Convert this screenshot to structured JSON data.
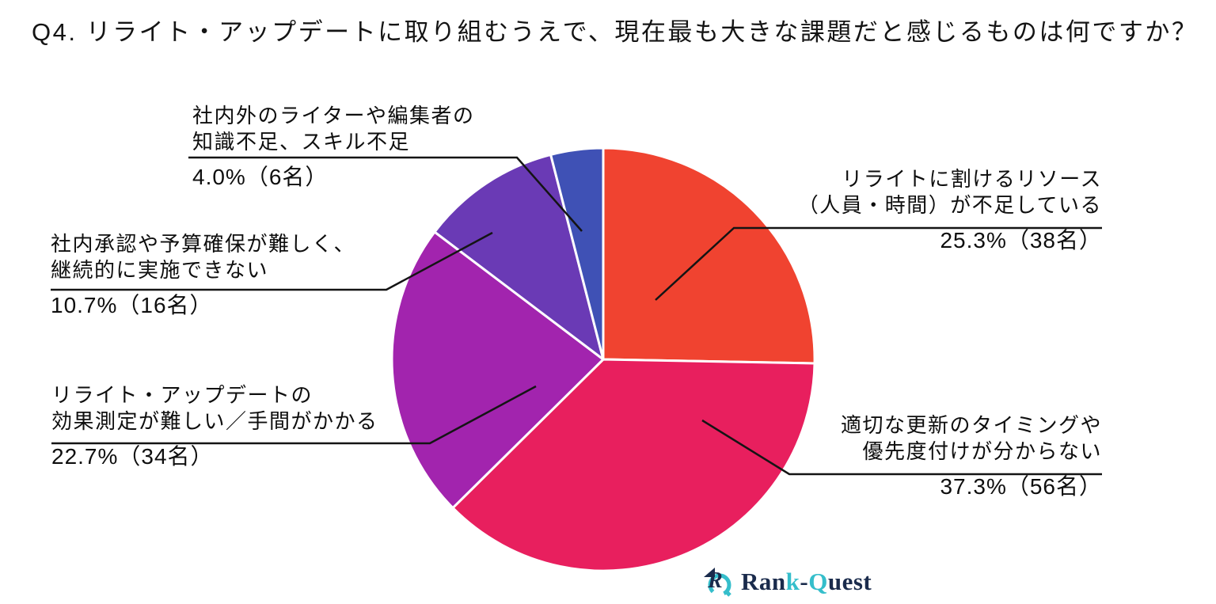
{
  "chart_data": {
    "type": "pie",
    "title": "Q4. リライト・アップデートに取り組むうえで、現在最も大きな課題だと感じるものは何ですか？",
    "direction": "clockwise",
    "start_angle": "12-oclock",
    "legend_position": "callout-labels",
    "count_unit": "名",
    "slices": [
      {
        "label_line1": "リライトに割けるリソース",
        "label_line2": "（人員・時間）が不足している",
        "percent": 25.3,
        "count": 38,
        "value_label": "25.3%（38名）",
        "color": "#F04330"
      },
      {
        "label_line1": "適切な更新のタイミングや",
        "label_line2": "優先度付けが分からない",
        "percent": 37.3,
        "count": 56,
        "value_label": "37.3%（56名）",
        "color": "#E81F5E"
      },
      {
        "label_line1": "リライト・アップデートの",
        "label_line2": "効果測定が難しい／手間がかかる",
        "percent": 22.7,
        "count": 34,
        "value_label": "22.7%（34名）",
        "color": "#A224AE"
      },
      {
        "label_line1": "社内承認や予算確保が難しく、",
        "label_line2": "継続的に実施できない",
        "percent": 10.7,
        "count": 16,
        "value_label": "10.7%（16名）",
        "color": "#6A3AB5"
      },
      {
        "label_line1": "社内外のライターや編集者の",
        "label_line2": "知識不足、スキル不足",
        "percent": 4.0,
        "count": 6,
        "value_label": "4.0%（6名）",
        "color": "#3F51B5"
      }
    ]
  },
  "logo": {
    "part1": "Ran",
    "part2": "k",
    "part3": "-",
    "part4": "Q",
    "part5": "uest",
    "navy": "#1A2B4C",
    "teal": "#35BECB"
  }
}
